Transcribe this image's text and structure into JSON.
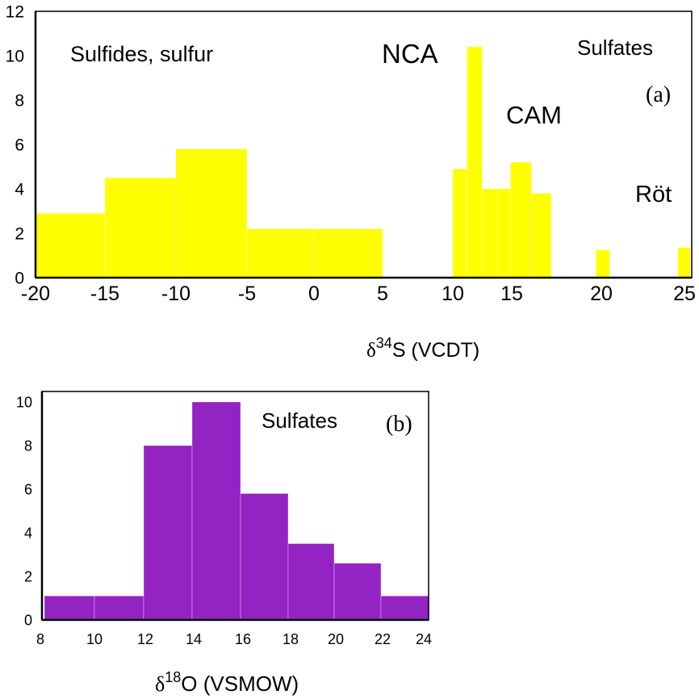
{
  "chart_data": [
    {
      "type": "bar",
      "panel_label": "(a)",
      "xlabel": "δ34S (VCDT)",
      "xlabel_parts": {
        "symbol": "δ",
        "sup": "34",
        "rest": "S (VCDT)"
      },
      "ylabel": "",
      "xticks": [
        -20,
        -15,
        -10,
        -5,
        0,
        5,
        10,
        15,
        20,
        25
      ],
      "yticks": [
        0,
        2,
        4,
        6,
        8,
        10,
        12
      ],
      "xlim": [
        -20,
        25.5
      ],
      "ylim": [
        0,
        12
      ],
      "grid": false,
      "annotations": [
        "Sulfides, sulfur",
        "NCA",
        "Sulfates",
        "CAM",
        "Röt"
      ],
      "colors": {
        "bars": "#ffff00"
      },
      "bins": [
        {
          "from": -20,
          "to": -15,
          "value": 2.9
        },
        {
          "from": -15,
          "to": -10,
          "value": 4.5
        },
        {
          "from": -10,
          "to": -5,
          "value": 5.8
        },
        {
          "from": -5,
          "to": 0,
          "value": 2.2
        },
        {
          "from": 0,
          "to": 5,
          "value": 2.2
        },
        {
          "from": 10,
          "to": 11.2,
          "value": 4.9
        },
        {
          "from": 11.2,
          "to": 12.5,
          "value": 10.4
        },
        {
          "from": 12.5,
          "to": 13.7,
          "value": 4.0
        },
        {
          "from": 13.7,
          "to": 14.9,
          "value": 4.0
        },
        {
          "from": 14.9,
          "to": 16.1,
          "value": 5.2
        },
        {
          "from": 16.1,
          "to": 17.2,
          "value": 3.8
        },
        {
          "from": 19.7,
          "to": 20.5,
          "value": 1.25
        },
        {
          "from": 24.6,
          "to": 25.4,
          "value": 1.35
        }
      ]
    },
    {
      "type": "bar",
      "panel_label": "(b)",
      "xlabel": "δ18O (VSMOW)",
      "xlabel_parts": {
        "symbol": "δ",
        "sup": "18",
        "rest": "O (VSMOW)"
      },
      "ylabel": "",
      "xticks": [
        8,
        10,
        12,
        14,
        16,
        18,
        20,
        22,
        24
      ],
      "yticks": [
        0,
        2,
        4,
        6,
        8,
        10
      ],
      "xlim": [
        8,
        24
      ],
      "ylim": [
        0,
        10.5
      ],
      "grid": false,
      "annotations": [
        "Sulfates"
      ],
      "colors": {
        "bars": "#9323c3"
      },
      "bins": [
        {
          "from": 8,
          "to": 10,
          "value": 1.1
        },
        {
          "from": 10,
          "to": 12,
          "value": 1.1
        },
        {
          "from": 12,
          "to": 14,
          "value": 8.0
        },
        {
          "from": 14,
          "to": 16,
          "value": 10.0
        },
        {
          "from": 16,
          "to": 18,
          "value": 5.8
        },
        {
          "from": 18,
          "to": 20,
          "value": 3.5
        },
        {
          "from": 20,
          "to": 22,
          "value": 2.6
        },
        {
          "from": 22,
          "to": 24,
          "value": 1.1
        }
      ]
    }
  ]
}
